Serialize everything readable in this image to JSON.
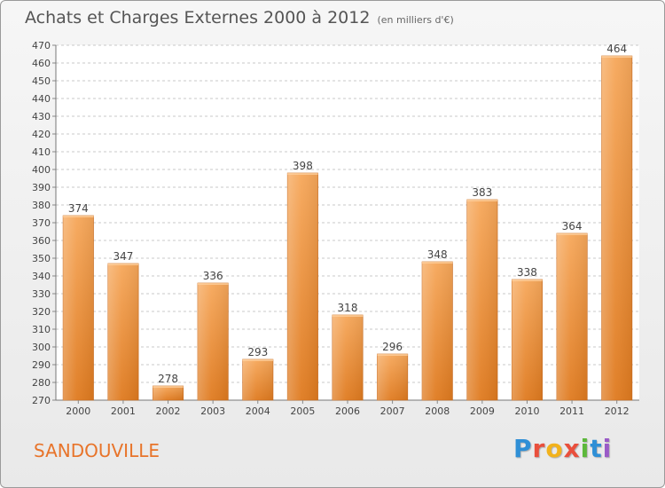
{
  "header": {
    "title": "Achats et Charges Externes 2000 à 2012",
    "subtitle": "(en milliers d'€)"
  },
  "footer": {
    "commune": "SANDOUVILLE",
    "logo_letters": [
      "P",
      "r",
      "o",
      "x",
      "i",
      "t",
      "i"
    ],
    "logo_colors": [
      "#2f8fd6",
      "#e94f3c",
      "#f2b21c",
      "#e94f3c",
      "#5cb83b",
      "#2f8fd6",
      "#9a5bc7"
    ]
  },
  "colors": {
    "bar_light": "#f6a75a",
    "bar_dark": "#df7a1f",
    "grid": "#c8c8c8",
    "text": "#444444",
    "accent": "#e8742a"
  },
  "chart_data": {
    "type": "bar",
    "title": "Achats et Charges Externes 2000 à 2012",
    "subtitle": "(en milliers d'€)",
    "categories": [
      "2000",
      "2001",
      "2002",
      "2003",
      "2004",
      "2005",
      "2006",
      "2007",
      "2008",
      "2009",
      "2010",
      "2011",
      "2012"
    ],
    "values": [
      374,
      347,
      278,
      336,
      293,
      398,
      318,
      296,
      348,
      383,
      338,
      364,
      464
    ],
    "ylim": [
      270,
      470
    ],
    "ytick_step": 10,
    "grid": true,
    "data_labels": true
  }
}
